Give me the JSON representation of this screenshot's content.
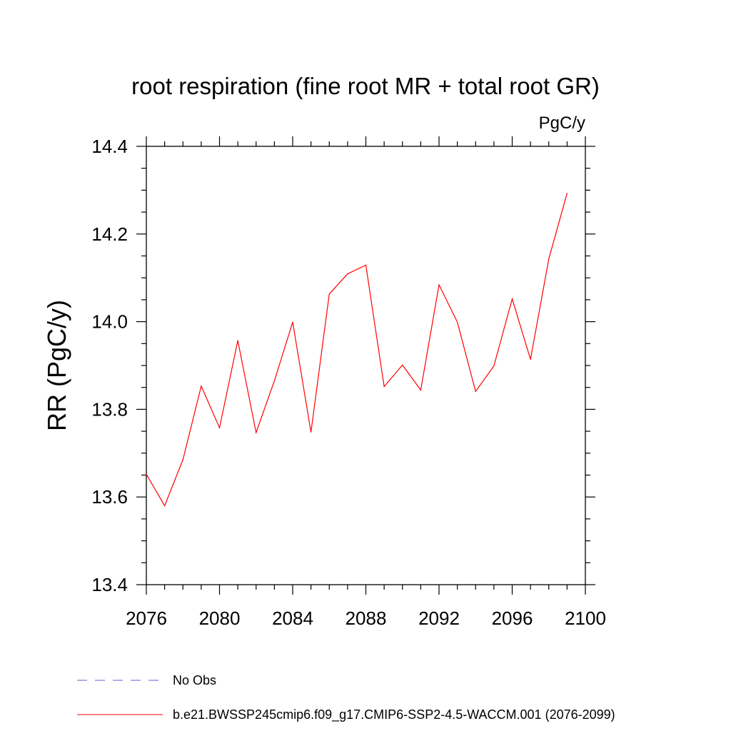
{
  "chart_data": {
    "type": "line",
    "title": "root respiration (fine root MR + total root GR)",
    "units_label": "PgC/y",
    "ylabel": "RR  (PgC/y)",
    "xlabel": "",
    "xlim": [
      2076,
      2100
    ],
    "ylim": [
      13.4,
      14.4
    ],
    "x_ticks": [
      2076,
      2080,
      2084,
      2088,
      2092,
      2096,
      2100
    ],
    "y_ticks": [
      13.4,
      13.6,
      13.8,
      14.0,
      14.2,
      14.4
    ],
    "x_tick_labels": [
      "2076",
      "2080",
      "2084",
      "2088",
      "2092",
      "2096",
      "2100"
    ],
    "y_tick_labels": [
      "13.4",
      "13.6",
      "13.8",
      "14.0",
      "14.2",
      "14.4"
    ],
    "x": [
      2076,
      2077,
      2078,
      2079,
      2080,
      2081,
      2082,
      2083,
      2084,
      2085,
      2086,
      2087,
      2088,
      2089,
      2090,
      2091,
      2092,
      2093,
      2094,
      2095,
      2096,
      2097,
      2098,
      2099
    ],
    "series": [
      {
        "name": "b.e21.BWSSP245cmip6.f09_g17.CMIP6-SSP2-4.5-WACCM.001 (2076-2099)",
        "color": "#ff0000",
        "values": [
          13.652,
          13.58,
          13.685,
          13.853,
          13.758,
          13.957,
          13.747,
          13.865,
          13.999,
          13.748,
          14.063,
          14.109,
          14.129,
          13.852,
          13.901,
          13.844,
          14.084,
          13.999,
          13.841,
          13.899,
          14.052,
          13.914,
          14.143,
          14.293
        ]
      }
    ],
    "legend": {
      "placement": "bottom",
      "entries": [
        {
          "label": "No Obs",
          "color": "#6a5acd",
          "style": "dashed"
        },
        {
          "label": "b.e21.BWSSP245cmip6.f09_g17.CMIP6-SSP2-4.5-WACCM.001 (2076-2099)",
          "color": "#ff0000",
          "style": "solid"
        }
      ]
    },
    "grid": false
  }
}
